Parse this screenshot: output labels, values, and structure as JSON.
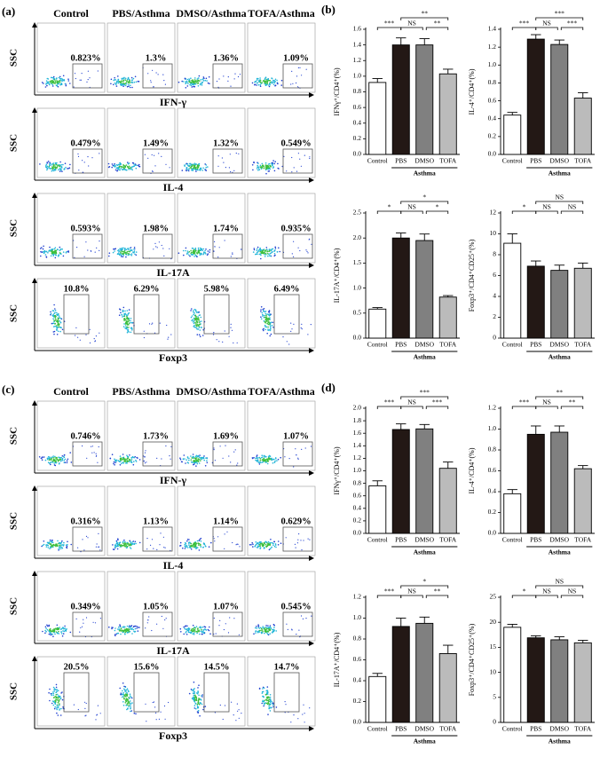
{
  "flow_panels": [
    {
      "label": "(a)",
      "columns": [
        "Control",
        "PBS/Asthma",
        "DMSO/Asthma",
        "TOFA/Asthma"
      ],
      "y_label": "SSC",
      "rows": [
        {
          "marker": "IFN-γ",
          "gates": [
            "0.823%",
            "1.3%",
            "1.36%",
            "1.09%"
          ]
        },
        {
          "marker": "IL-4",
          "gates": [
            "0.479%",
            "1.49%",
            "1.32%",
            "0.549%"
          ]
        },
        {
          "marker": "IL-17A",
          "gates": [
            "0.593%",
            "1.98%",
            "1.74%",
            "0.935%"
          ]
        },
        {
          "marker": "Foxp3",
          "gates": [
            "10.8%",
            "6.29%",
            "5.98%",
            "6.49%"
          ]
        }
      ]
    },
    {
      "label": "(c)",
      "columns": [
        "Control",
        "PBS/Asthma",
        "DMSO/Asthma",
        "TOFA/Asthma"
      ],
      "y_label": "SSC",
      "rows": [
        {
          "marker": "IFN-γ",
          "gates": [
            "0.746%",
            "1.73%",
            "1.69%",
            "1.07%"
          ]
        },
        {
          "marker": "IL-4",
          "gates": [
            "0.316%",
            "1.13%",
            "1.14%",
            "0.629%"
          ]
        },
        {
          "marker": "IL-17A",
          "gates": [
            "0.349%",
            "1.05%",
            "1.07%",
            "0.545%"
          ]
        },
        {
          "marker": "Foxp3",
          "gates": [
            "20.5%",
            "15.6%",
            "14.5%",
            "14.7%"
          ]
        }
      ]
    }
  ],
  "panel_labels": [
    "(b)",
    "(d)"
  ],
  "chart_data": [
    {
      "type": "bar",
      "y_label": "IFNγ⁺/CD4⁺(%)",
      "group_label": "Asthma",
      "categories": [
        "Control",
        "PBS",
        "DMSO",
        "TOFA"
      ],
      "values": [
        0.92,
        1.4,
        1.4,
        1.03
      ],
      "errors": [
        0.05,
        0.09,
        0.08,
        0.06
      ],
      "colors": [
        "#ffffff",
        "#231815",
        "#808080",
        "#bbbbbb"
      ],
      "ylim": [
        0,
        1.6
      ],
      "yticks": [
        {
          "value": 0,
          "label": "0.0"
        },
        0.2,
        0.4,
        0.6,
        0.8,
        {
          "value": 1,
          "label": "1.0"
        },
        1.2,
        1.4,
        1.6
      ],
      "significance": [
        "***",
        "NS",
        "**",
        "**"
      ]
    },
    {
      "type": "bar",
      "y_label": "IL-4⁺/CD4⁺(%)",
      "group_label": "Asthma",
      "categories": [
        "Control",
        "PBS",
        "DMSO",
        "TOFA"
      ],
      "values": [
        0.44,
        1.29,
        1.23,
        0.63
      ],
      "errors": [
        0.03,
        0.05,
        0.05,
        0.06
      ],
      "colors": [
        "#ffffff",
        "#231815",
        "#808080",
        "#bbbbbb"
      ],
      "ylim": [
        0,
        1.4
      ],
      "yticks": [
        {
          "value": 0,
          "label": "0.0"
        },
        0.2,
        0.4,
        0.6,
        0.8,
        {
          "value": 1,
          "label": "1.0"
        },
        1.2,
        1.4
      ],
      "significance": [
        "***",
        "NS",
        "***",
        "***"
      ]
    },
    {
      "type": "bar",
      "y_label": "IL-17A⁺/CD4⁺(%)",
      "group_label": "Asthma",
      "categories": [
        "Control",
        "PBS",
        "DMSO",
        "TOFA"
      ],
      "values": [
        0.58,
        2.0,
        1.95,
        0.82
      ],
      "errors": [
        0.03,
        0.1,
        0.13,
        0.03
      ],
      "colors": [
        "#ffffff",
        "#231815",
        "#808080",
        "#bbbbbb"
      ],
      "ylim": [
        0,
        2.5
      ],
      "yticks": [
        {
          "value": 0,
          "label": "0.0"
        },
        0.5,
        {
          "value": 1,
          "label": "1.0"
        },
        1.5,
        {
          "value": 2,
          "label": "2.0"
        },
        2.5
      ],
      "significance": [
        "*",
        "NS",
        "*",
        "*"
      ]
    },
    {
      "type": "bar",
      "y_label": "Foxp3⁺/CD4⁺CD25⁺(%)",
      "group_label": "Asthma",
      "categories": [
        "Control",
        "PBS",
        "DMSO",
        "TOFA"
      ],
      "values": [
        9.1,
        6.9,
        6.5,
        6.7
      ],
      "errors": [
        0.9,
        0.5,
        0.5,
        0.5
      ],
      "colors": [
        "#ffffff",
        "#231815",
        "#808080",
        "#bbbbbb"
      ],
      "ylim": [
        0,
        12
      ],
      "yticks": [
        0,
        2,
        4,
        6,
        8,
        10,
        12
      ],
      "significance": [
        "*",
        "NS",
        "NS",
        "NS"
      ]
    },
    {
      "type": "bar",
      "y_label": "IFNγ⁺/CD4⁺(%)",
      "group_label": "Asthma",
      "categories": [
        "Control",
        "PBS",
        "DMSO",
        "TOFA"
      ],
      "values": [
        0.76,
        1.66,
        1.67,
        1.04
      ],
      "errors": [
        0.08,
        0.09,
        0.07,
        0.1
      ],
      "colors": [
        "#ffffff",
        "#231815",
        "#808080",
        "#bbbbbb"
      ],
      "ylim": [
        0,
        2
      ],
      "yticks": [
        {
          "value": 0,
          "label": "0.0"
        },
        0.2,
        0.4,
        0.6,
        0.8,
        {
          "value": 1,
          "label": "1.0"
        },
        1.2,
        1.4,
        1.6,
        1.8,
        {
          "value": 2,
          "label": "2.0"
        }
      ],
      "significance": [
        "***",
        "NS",
        "***",
        "***"
      ]
    },
    {
      "type": "bar",
      "y_label": "IL-4⁺/CD4⁺(%)",
      "group_label": "Asthma",
      "categories": [
        "Control",
        "PBS",
        "DMSO",
        "TOFA"
      ],
      "values": [
        0.38,
        0.95,
        0.97,
        0.62
      ],
      "errors": [
        0.04,
        0.08,
        0.06,
        0.03
      ],
      "colors": [
        "#ffffff",
        "#231815",
        "#808080",
        "#bbbbbb"
      ],
      "ylim": [
        0,
        1.2
      ],
      "yticks": [
        {
          "value": 0,
          "label": "0.0"
        },
        0.2,
        0.4,
        0.6,
        0.8,
        {
          "value": 1,
          "label": "1.0"
        },
        1.2
      ],
      "significance": [
        "***",
        "NS",
        "**",
        "**"
      ]
    },
    {
      "type": "bar",
      "y_label": "IL-17A⁺/CD4⁺(%)",
      "group_label": "Asthma",
      "categories": [
        "Control",
        "PBS",
        "DMSO",
        "TOFA"
      ],
      "values": [
        0.44,
        0.92,
        0.95,
        0.66
      ],
      "errors": [
        0.03,
        0.08,
        0.06,
        0.08
      ],
      "colors": [
        "#ffffff",
        "#231815",
        "#808080",
        "#bbbbbb"
      ],
      "ylim": [
        0,
        1.2
      ],
      "yticks": [
        {
          "value": 0,
          "label": "0.0"
        },
        0.2,
        0.4,
        0.6,
        0.8,
        {
          "value": 1,
          "label": "1.0"
        },
        1.2
      ],
      "significance": [
        "***",
        "NS",
        "*",
        "**"
      ]
    },
    {
      "type": "bar",
      "y_label": "Foxp3⁺/CD4⁺CD25⁺(%)",
      "group_label": "Asthma",
      "categories": [
        "Control",
        "PBS",
        "DMSO",
        "TOFA"
      ],
      "values": [
        19.0,
        16.9,
        16.5,
        15.9
      ],
      "errors": [
        0.6,
        0.4,
        0.6,
        0.5
      ],
      "colors": [
        "#ffffff",
        "#231815",
        "#808080",
        "#bbbbbb"
      ],
      "ylim": [
        0,
        25
      ],
      "yticks": [
        0,
        5,
        10,
        15,
        20,
        25
      ],
      "significance": [
        "*",
        "NS",
        "NS",
        "NS"
      ]
    }
  ]
}
